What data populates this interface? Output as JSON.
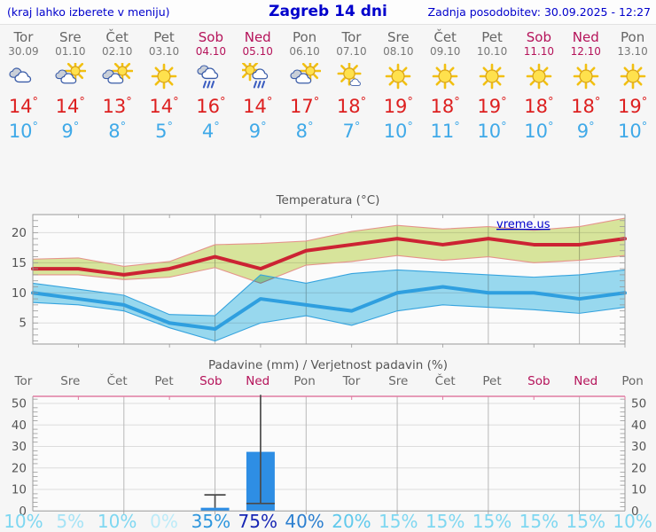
{
  "header": {
    "left_note": "(kraj lahko izberete v meniju)",
    "title": "Zagreb 14 dni",
    "updated": "Zadnja posodobitev: 30.09.2025 - 12:27"
  },
  "watermark": "vreme.us",
  "symbols": {
    "degree": "°"
  },
  "colors": {
    "accent_blue": "#0000cc",
    "weekday_text": "#666666",
    "weekend_text": "#b5135a",
    "temp_high": "#dd2020",
    "temp_low": "#3fa9e8",
    "bar_blue": "#2e8ee4",
    "whisker": "#4a4a4a",
    "precip_top_border": "#e07ca2"
  },
  "days": [
    {
      "name": "Tor",
      "date": "30.09",
      "weekend": false,
      "icon": "cloudy",
      "high": "14",
      "low": "10",
      "prob": "10%",
      "prob_color": "#7ed7f1"
    },
    {
      "name": "Sre",
      "date": "01.10",
      "weekend": false,
      "icon": "partly-cloudy",
      "high": "14",
      "low": "9",
      "prob": "5%",
      "prob_color": "#a5e3f6"
    },
    {
      "name": "Čet",
      "date": "02.10",
      "weekend": false,
      "icon": "partly-cloudy",
      "high": "13",
      "low": "8",
      "prob": "10%",
      "prob_color": "#7ed7f1"
    },
    {
      "name": "Pet",
      "date": "03.10",
      "weekend": false,
      "icon": "sunny",
      "high": "14",
      "low": "5",
      "prob": "0%",
      "prob_color": "#bcebf8"
    },
    {
      "name": "Sob",
      "date": "04.10",
      "weekend": true,
      "icon": "rain",
      "high": "16",
      "low": "4",
      "prob": "35%",
      "prob_color": "#2d96dd"
    },
    {
      "name": "Ned",
      "date": "05.10",
      "weekend": true,
      "icon": "sun-rain",
      "high": "14",
      "low": "9",
      "prob": "75%",
      "prob_color": "#1726b4"
    },
    {
      "name": "Pon",
      "date": "06.10",
      "weekend": false,
      "icon": "partly-cloudy",
      "high": "17",
      "low": "8",
      "prob": "40%",
      "prob_color": "#2b7fd0"
    },
    {
      "name": "Tor",
      "date": "07.10",
      "weekend": false,
      "icon": "mostly-sunny",
      "high": "18",
      "low": "7",
      "prob": "20%",
      "prob_color": "#5fc9ec"
    },
    {
      "name": "Sre",
      "date": "08.10",
      "weekend": false,
      "icon": "sunny",
      "high": "19",
      "low": "10",
      "prob": "15%",
      "prob_color": "#7ed7f1"
    },
    {
      "name": "Čet",
      "date": "09.10",
      "weekend": false,
      "icon": "sunny",
      "high": "18",
      "low": "11",
      "prob": "15%",
      "prob_color": "#7ed7f1"
    },
    {
      "name": "Pet",
      "date": "10.10",
      "weekend": false,
      "icon": "sunny",
      "high": "19",
      "low": "10",
      "prob": "15%",
      "prob_color": "#7ed7f1"
    },
    {
      "name": "Sob",
      "date": "11.10",
      "weekend": true,
      "icon": "sunny",
      "high": "18",
      "low": "10",
      "prob": "15%",
      "prob_color": "#7ed7f1"
    },
    {
      "name": "Ned",
      "date": "12.10",
      "weekend": true,
      "icon": "sunny",
      "high": "18",
      "low": "9",
      "prob": "15%",
      "prob_color": "#7ed7f1"
    },
    {
      "name": "Pon",
      "date": "13.10",
      "weekend": false,
      "icon": "sunny",
      "high": "19",
      "low": "10",
      "prob": "10%",
      "prob_color": "#7ed7f1"
    }
  ],
  "chart_data": [
    {
      "type": "area",
      "title": "Temperatura (°C)",
      "categories": [
        "Tor 30.09",
        "Sre 01.10",
        "Čet 02.10",
        "Pet 03.10",
        "Sob 04.10",
        "Ned 05.10",
        "Pon 06.10",
        "Tor 07.10",
        "Sre 08.10",
        "Čet 09.10",
        "Pet 10.10",
        "Sob 11.10",
        "Ned 12.10",
        "Pon 13.10"
      ],
      "ylim": [
        1.5,
        23
      ],
      "yticks": [
        5,
        10,
        15,
        20
      ],
      "grid_day_indices": [
        2,
        4,
        6,
        8,
        10,
        12
      ],
      "grid": true,
      "legend": "none",
      "series": [
        {
          "name": "Max temperatura razpon",
          "role": "band",
          "fill": "#dbe89e",
          "edge": "#e5938b",
          "upper": [
            15.6,
            15.8,
            14.4,
            15.2,
            18.0,
            18.2,
            18.6,
            20.2,
            21.2,
            20.6,
            21.0,
            20.4,
            21.0,
            22.4
          ],
          "lower": [
            13.0,
            13.0,
            12.2,
            12.6,
            14.2,
            11.6,
            14.6,
            15.2,
            16.2,
            15.4,
            16.0,
            15.0,
            15.4,
            16.2
          ]
        },
        {
          "name": "Min temperatura razpon",
          "role": "band",
          "fill": "#9bdcf2",
          "edge": "#35a3de",
          "upper": [
            11.6,
            10.6,
            9.6,
            6.4,
            6.2,
            13.0,
            11.6,
            13.2,
            13.8,
            13.4,
            13.0,
            12.6,
            13.0,
            13.8
          ],
          "lower": [
            8.4,
            8.0,
            7.0,
            4.2,
            2.0,
            5.0,
            6.2,
            4.6,
            7.0,
            8.0,
            7.6,
            7.2,
            6.6,
            7.6
          ]
        },
        {
          "name": "Max temperatura",
          "role": "line",
          "color": "#cc2333",
          "values": [
            14,
            14,
            13,
            14,
            16,
            14,
            17,
            18,
            19,
            18,
            19,
            18,
            18,
            19
          ]
        },
        {
          "name": "Min temperatura",
          "role": "line",
          "color": "#2f9fdf",
          "values": [
            10,
            9,
            8,
            5,
            4,
            9,
            8,
            7,
            10,
            11,
            10,
            10,
            9,
            10
          ]
        }
      ]
    },
    {
      "type": "bar",
      "title": "Padavine (mm) / Verjetnost padavin (%)",
      "categories": [
        "Tor",
        "Sre",
        "Čet",
        "Pet",
        "Sob",
        "Ned",
        "Pon",
        "Tor",
        "Sre",
        "Čet",
        "Pet",
        "Sob",
        "Ned",
        "Pon"
      ],
      "ylim": [
        0,
        53
      ],
      "yticks": [
        0,
        10,
        20,
        30,
        40,
        50
      ],
      "grid_day_indices": [
        2,
        4,
        6,
        8,
        10,
        12
      ],
      "y_axis_sides": "both",
      "bars": [
        {
          "day_index": 4,
          "value": 1.5,
          "whisker": [
            1.5,
            7.5
          ],
          "caps": [
            7.5
          ]
        },
        {
          "day_index": 5,
          "value": 27.5,
          "whisker": [
            3.5,
            54
          ],
          "caps": [
            3.5
          ]
        }
      ],
      "probabilities": [
        10,
        5,
        10,
        0,
        35,
        75,
        40,
        20,
        15,
        15,
        15,
        15,
        15,
        10
      ]
    }
  ]
}
